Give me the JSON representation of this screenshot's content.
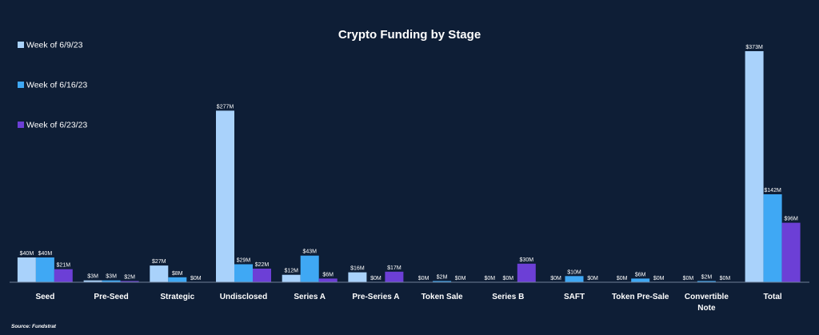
{
  "chart_data": {
    "type": "bar",
    "title": "Crypto Funding by Stage",
    "categories": [
      "Seed",
      "Pre-Seed",
      "Strategic",
      "Undisclosed",
      "Series A",
      "Pre-Series A",
      "Token Sale",
      "Series B",
      "SAFT",
      "Token Pre-Sale",
      "Convertible Note",
      "Total"
    ],
    "series": [
      {
        "name": "Week of 6/9/23",
        "color": "#a9d2fb",
        "values": [
          40,
          3,
          27,
          277,
          12,
          16,
          0,
          0,
          0,
          0,
          0,
          373
        ]
      },
      {
        "name": "Week of 6/16/23",
        "color": "#3fa8f4",
        "values": [
          40,
          3,
          8,
          29,
          43,
          0,
          2,
          0,
          10,
          6,
          2,
          142
        ]
      },
      {
        "name": "Week of 6/23/23",
        "color": "#6c3fd6",
        "values": [
          21,
          2,
          0,
          22,
          6,
          17,
          0,
          30,
          0,
          0,
          0,
          96
        ]
      }
    ],
    "value_prefix": "$",
    "value_suffix": "M",
    "ylim": [
      0,
      380
    ],
    "legend_position": "top-left",
    "grid": false
  },
  "source": "Source: Fundstrat"
}
